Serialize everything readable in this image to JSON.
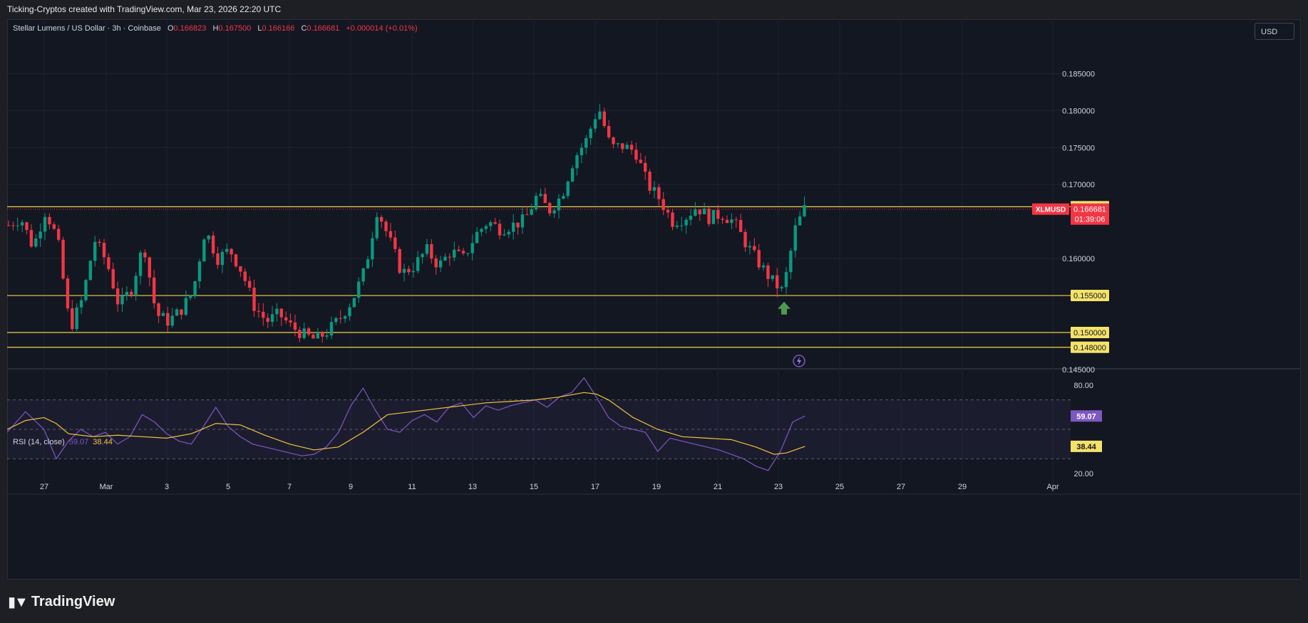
{
  "header": "Ticking-Cryptos created with TradingView.com, Mar 23, 2026 22:20 UTC",
  "legend": {
    "symbol": "Stellar Lumens / US Dollar · 3h · Coinbase",
    "o_label": "O",
    "o": "0.166823",
    "h_label": "H",
    "h": "0.167500",
    "l_label": "L",
    "l": "0.166166",
    "c_label": "C",
    "c": "0.166681",
    "change": "+0.000014 (+0.01%)"
  },
  "currency_button": "USD",
  "rsi_legend": {
    "name": "RSI (14, close)",
    "rsi": "59.07",
    "ma": "38.44"
  },
  "footer_brand": "TradingView",
  "chart_data": {
    "type": "candlestick",
    "price_axis": {
      "ticks": [
        "0.185000",
        "0.180000",
        "0.175000",
        "0.170000",
        "0.160000",
        "0.145000"
      ],
      "range": [
        0.1423,
        0.1885
      ]
    },
    "time_axis": {
      "ticks": [
        "27",
        "Mar",
        "3",
        "5",
        "7",
        "9",
        "11",
        "13",
        "15",
        "17",
        "19",
        "21",
        "23",
        "25",
        "27",
        "29",
        "Apr"
      ]
    },
    "horizontal_levels": [
      {
        "label": "0.167000",
        "value": 0.167
      },
      {
        "label": "0.155000",
        "value": 0.155
      },
      {
        "label": "0.150000",
        "value": 0.15
      },
      {
        "label": "0.148000",
        "value": 0.148
      }
    ],
    "last_price": {
      "symbol": "XLMUSD",
      "value": "0.166681",
      "countdown": "01:39:06"
    },
    "path": [
      [
        0,
        0.1645
      ],
      [
        2,
        0.1655
      ],
      [
        4,
        0.1615
      ],
      [
        6,
        0.1665
      ],
      [
        8,
        0.1625
      ],
      [
        10,
        0.1505
      ],
      [
        12,
        0.1545
      ],
      [
        14,
        0.1625
      ],
      [
        16,
        0.1595
      ],
      [
        18,
        0.1535
      ],
      [
        20,
        0.156
      ],
      [
        22,
        0.162
      ],
      [
        24,
        0.1525
      ],
      [
        26,
        0.1515
      ],
      [
        28,
        0.153
      ],
      [
        30,
        0.1555
      ],
      [
        32,
        0.164
      ],
      [
        34,
        0.16
      ],
      [
        36,
        0.1612
      ],
      [
        38,
        0.1582
      ],
      [
        40,
        0.1535
      ],
      [
        42,
        0.1515
      ],
      [
        44,
        0.1525
      ],
      [
        46,
        0.1508
      ],
      [
        48,
        0.1497
      ],
      [
        50,
        0.149
      ],
      [
        52,
        0.1502
      ],
      [
        54,
        0.152
      ],
      [
        56,
        0.1545
      ],
      [
        58,
        0.1585
      ],
      [
        60,
        0.1667
      ],
      [
        62,
        0.1625
      ],
      [
        64,
        0.158
      ],
      [
        66,
        0.159
      ],
      [
        68,
        0.1612
      ],
      [
        70,
        0.159
      ],
      [
        72,
        0.161
      ],
      [
        74,
        0.16
      ],
      [
        76,
        0.1632
      ],
      [
        78,
        0.165
      ],
      [
        80,
        0.164
      ],
      [
        82,
        0.1645
      ],
      [
        84,
        0.1652
      ],
      [
        86,
        0.1685
      ],
      [
        88,
        0.1665
      ],
      [
        90,
        0.1685
      ],
      [
        92,
        0.1735
      ],
      [
        94,
        0.176
      ],
      [
        96,
        0.1805
      ],
      [
        98,
        0.175
      ],
      [
        100,
        0.1752
      ],
      [
        102,
        0.1745
      ],
      [
        104,
        0.17
      ],
      [
        106,
        0.168
      ],
      [
        108,
        0.165
      ],
      [
        110,
        0.1655
      ],
      [
        112,
        0.167
      ],
      [
        114,
        0.1655
      ],
      [
        116,
        0.166
      ],
      [
        118,
        0.165
      ],
      [
        120,
        0.162
      ],
      [
        122,
        0.1595
      ],
      [
        124,
        0.1572
      ],
      [
        126,
        0.1555
      ],
      [
        128,
        0.164
      ],
      [
        129.5,
        0.1667
      ]
    ],
    "rsi": {
      "name": "RSI (14, close)",
      "axis_ticks": [
        "80.00",
        "20.00"
      ],
      "bands": [
        70,
        50,
        30
      ],
      "rsi_path": [
        [
          0,
          48
        ],
        [
          3,
          62
        ],
        [
          6,
          50
        ],
        [
          8,
          30
        ],
        [
          10,
          42
        ],
        [
          12,
          50
        ],
        [
          14,
          45
        ],
        [
          16,
          48
        ],
        [
          18,
          40
        ],
        [
          20,
          45
        ],
        [
          22,
          60
        ],
        [
          24,
          55
        ],
        [
          26,
          47
        ],
        [
          28,
          42
        ],
        [
          30,
          40
        ],
        [
          32,
          52
        ],
        [
          34,
          65
        ],
        [
          36,
          52
        ],
        [
          38,
          45
        ],
        [
          40,
          40
        ],
        [
          42,
          38
        ],
        [
          44,
          36
        ],
        [
          46,
          34
        ],
        [
          48,
          32
        ],
        [
          50,
          33
        ],
        [
          52,
          38
        ],
        [
          54,
          48
        ],
        [
          56,
          66
        ],
        [
          58,
          78
        ],
        [
          60,
          63
        ],
        [
          62,
          50
        ],
        [
          64,
          48
        ],
        [
          66,
          56
        ],
        [
          68,
          60
        ],
        [
          70,
          55
        ],
        [
          72,
          65
        ],
        [
          74,
          68
        ],
        [
          76,
          58
        ],
        [
          78,
          66
        ],
        [
          80,
          63
        ],
        [
          82,
          66
        ],
        [
          84,
          68
        ],
        [
          86,
          70
        ],
        [
          88,
          65
        ],
        [
          90,
          72
        ],
        [
          92,
          75
        ],
        [
          94,
          85
        ],
        [
          96,
          72
        ],
        [
          98,
          58
        ],
        [
          100,
          52
        ],
        [
          102,
          50
        ],
        [
          104,
          48
        ],
        [
          106,
          35
        ],
        [
          108,
          44
        ],
        [
          110,
          42
        ],
        [
          112,
          40
        ],
        [
          114,
          38
        ],
        [
          116,
          36
        ],
        [
          118,
          33
        ],
        [
          120,
          30
        ],
        [
          122,
          25
        ],
        [
          124,
          22
        ],
        [
          126,
          35
        ],
        [
          128,
          55
        ],
        [
          130,
          59.07
        ]
      ],
      "ma_path": [
        [
          0,
          50
        ],
        [
          3,
          56
        ],
        [
          6,
          58
        ],
        [
          8,
          54
        ],
        [
          10,
          47
        ],
        [
          14,
          45
        ],
        [
          18,
          46
        ],
        [
          22,
          45
        ],
        [
          26,
          44
        ],
        [
          30,
          47
        ],
        [
          34,
          54
        ],
        [
          38,
          53
        ],
        [
          42,
          46
        ],
        [
          46,
          40
        ],
        [
          50,
          36
        ],
        [
          54,
          38
        ],
        [
          58,
          48
        ],
        [
          62,
          60
        ],
        [
          66,
          62
        ],
        [
          70,
          64
        ],
        [
          74,
          66
        ],
        [
          78,
          68
        ],
        [
          82,
          69
        ],
        [
          86,
          70
        ],
        [
          90,
          72
        ],
        [
          94,
          75
        ],
        [
          96,
          74
        ],
        [
          98,
          70
        ],
        [
          102,
          58
        ],
        [
          106,
          50
        ],
        [
          110,
          45
        ],
        [
          114,
          44
        ],
        [
          118,
          43
        ],
        [
          122,
          38
        ],
        [
          125,
          33
        ],
        [
          127,
          34
        ],
        [
          130,
          38.44
        ]
      ]
    }
  }
}
